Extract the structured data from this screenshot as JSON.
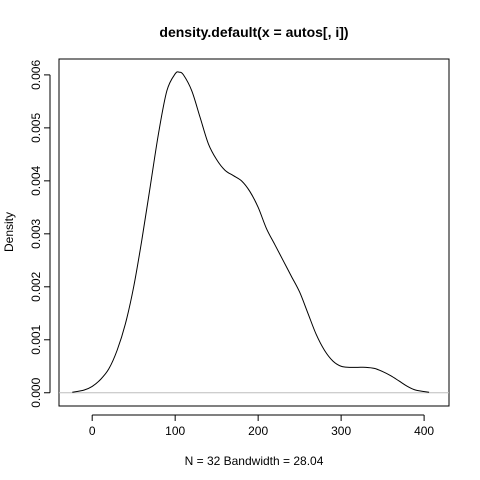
{
  "chart_data": {
    "type": "line",
    "title": "density.default(x = autos[, i])",
    "xlabel": "N = 32   Bandwidth = 28.04",
    "ylabel": "Density",
    "xlim": [
      -40,
      430
    ],
    "ylim": [
      -0.00025,
      0.0063
    ],
    "x_ticks": [
      0,
      100,
      200,
      300,
      400
    ],
    "y_ticks": [
      0.0,
      0.001,
      0.002,
      0.003,
      0.004,
      0.005,
      0.006
    ],
    "y_tick_labels": [
      "0.000",
      "0.001",
      "0.002",
      "0.003",
      "0.004",
      "0.005",
      "0.006"
    ],
    "baseline": 0,
    "grid": false,
    "legend": "none",
    "series": [
      {
        "x": [
          -24,
          -10,
          0,
          10,
          20,
          30,
          40,
          50,
          60,
          70,
          80,
          90,
          100,
          105,
          110,
          120,
          130,
          140,
          150,
          160,
          170,
          180,
          190,
          200,
          210,
          220,
          230,
          240,
          250,
          260,
          270,
          280,
          290,
          300,
          310,
          320,
          330,
          340,
          350,
          360,
          370,
          380,
          390,
          406
        ],
        "y": [
          1e-05,
          5e-05,
          0.00012,
          0.00025,
          0.00045,
          0.0008,
          0.0013,
          0.002,
          0.0029,
          0.0039,
          0.0049,
          0.0057,
          0.00602,
          0.00605,
          0.006,
          0.0057,
          0.0052,
          0.0047,
          0.0044,
          0.0042,
          0.0041,
          0.004,
          0.0038,
          0.0035,
          0.0031,
          0.0028,
          0.0025,
          0.0022,
          0.0019,
          0.0015,
          0.0011,
          0.0008,
          0.0006,
          0.0005,
          0.00048,
          0.00048,
          0.00048,
          0.00046,
          0.0004,
          0.00032,
          0.00022,
          0.00012,
          5e-05,
          1e-05
        ]
      }
    ]
  }
}
